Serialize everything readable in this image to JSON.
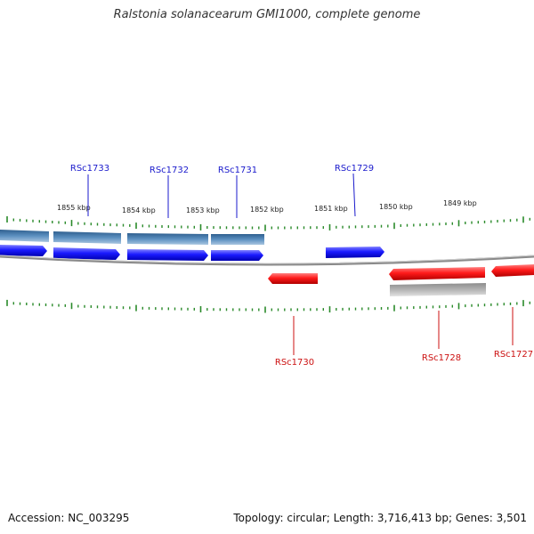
{
  "title": "Ralstonia solanacearum GMI1000, complete genome",
  "footer": {
    "accession": "Accession: NC_003295",
    "summary": "Topology: circular; Length: 3,716,413 bp; Genes: 3,501"
  },
  "scale_labels": [
    "1855 kbp",
    "1854 kbp",
    "1853 kbp",
    "1852 kbp",
    "1851 kbp",
    "1850 kbp",
    "1849 kbp"
  ],
  "genes_forward": [
    {
      "name": "RSc1733"
    },
    {
      "name": "RSc1732"
    },
    {
      "name": "RSc1731"
    },
    {
      "name": "RSc1729"
    }
  ],
  "genes_reverse": [
    {
      "name": "RSc1730"
    },
    {
      "name": "RSc1728"
    },
    {
      "name": "RSc1727"
    }
  ],
  "colors": {
    "forward_gene": "#1a1aff",
    "forward_label": "#1a1acc",
    "reverse_gene": "#ff1a1a",
    "reverse_label": "#cc1111",
    "cds_feature": "#4a7fb3",
    "grey_feature": "#a8a8a8",
    "backbone": "#8a8a8a",
    "tick": "#2a8a2a"
  }
}
